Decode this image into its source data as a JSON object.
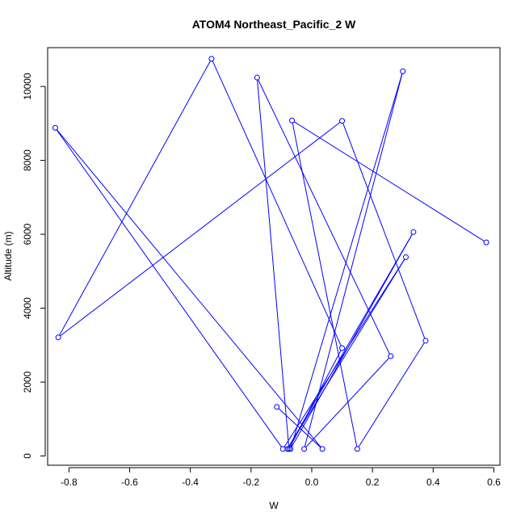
{
  "chart_data": {
    "type": "line",
    "title": "ATOM4 Northeast_Pacific_2 W",
    "xlabel": "W",
    "ylabel": "Altitude (m)",
    "xlim": [
      -0.87,
      0.62
    ],
    "ylim": [
      -250,
      11050
    ],
    "xticks": [
      -0.8,
      -0.6,
      -0.4,
      -0.2,
      0.0,
      0.2,
      0.4,
      0.6
    ],
    "xtick_labels": [
      "-0.8",
      "-0.6",
      "-0.4",
      "-0.2",
      "0.0",
      "0.2",
      "0.4",
      "0.6"
    ],
    "yticks": [
      0,
      2000,
      4000,
      6000,
      8000,
      10000
    ],
    "ytick_labels": [
      "0",
      "2000",
      "4000",
      "6000",
      "8000",
      "10000"
    ],
    "colors": {
      "series": "#0000ff",
      "axis": "#000000"
    },
    "markers": "open-circle",
    "grid": false,
    "series": [
      {
        "points": [
          {
            "x": -0.115,
            "y": 1330
          },
          {
            "x": 0.035,
            "y": 190
          },
          {
            "x": -0.845,
            "y": 8880
          },
          {
            "x": -0.095,
            "y": 190
          },
          {
            "x": 0.31,
            "y": 5380
          },
          {
            "x": -0.08,
            "y": 190
          },
          {
            "x": 0.335,
            "y": 6060
          },
          {
            "x": -0.07,
            "y": 190
          },
          {
            "x": 0.3,
            "y": 10410
          },
          {
            "x": -0.025,
            "y": 190
          },
          {
            "x": 0.26,
            "y": 2700
          },
          {
            "x": -0.18,
            "y": 10240
          },
          {
            "x": -0.075,
            "y": 190
          },
          {
            "x": 0.1,
            "y": 2920
          },
          {
            "x": -0.33,
            "y": 10750
          },
          {
            "x": -0.835,
            "y": 3210
          },
          {
            "x": 0.1,
            "y": 9070
          },
          {
            "x": 0.375,
            "y": 3120
          },
          {
            "x": 0.15,
            "y": 190
          },
          {
            "x": -0.065,
            "y": 9080
          },
          {
            "x": 0.575,
            "y": 5780
          }
        ]
      }
    ]
  }
}
